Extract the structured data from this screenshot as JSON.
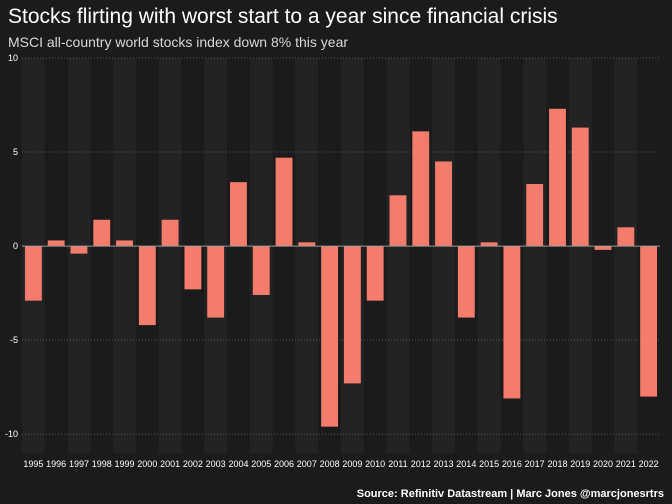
{
  "title": "Stocks flirting with worst start to a year since financial crisis",
  "subtitle": "MSCI all-country world stocks index down 8% this year",
  "source": "Source: Refinitiv Datastream | Marc Jones @marcjonesrtrs",
  "colors": {
    "bar": "#f47c6c",
    "background": "#1b1b1b",
    "band": "#232323",
    "zero_line": "#9a9a9a"
  },
  "chart_data": {
    "type": "bar",
    "title": "Stocks flirting with worst start to a year since financial crisis",
    "subtitle": "MSCI all-country world stocks index down 8% this year",
    "xlabel": "",
    "ylabel": "",
    "ylim": [
      -11,
      10
    ],
    "yticks": [
      "10",
      "5",
      "0",
      "-5",
      "-10"
    ],
    "grid": "horizontal dotted",
    "categories": [
      "1995",
      "1996",
      "1997",
      "1998",
      "1999",
      "2000",
      "2001",
      "2002",
      "2003",
      "2004",
      "2005",
      "2006",
      "2007",
      "2008",
      "2009",
      "2010",
      "2011",
      "2012",
      "2013",
      "2014",
      "2015",
      "2016",
      "2017",
      "2018",
      "2019",
      "2020",
      "2021",
      "2022"
    ],
    "values": [
      -2.9,
      0.3,
      -0.4,
      1.4,
      0.3,
      -4.2,
      1.4,
      -2.3,
      -3.8,
      3.4,
      -2.6,
      4.7,
      0.2,
      -9.6,
      -7.3,
      -2.9,
      2.7,
      6.1,
      4.5,
      -3.8,
      0.2,
      -8.1,
      3.3,
      7.3,
      6.3,
      -0.2,
      1.0,
      -8.0
    ]
  }
}
